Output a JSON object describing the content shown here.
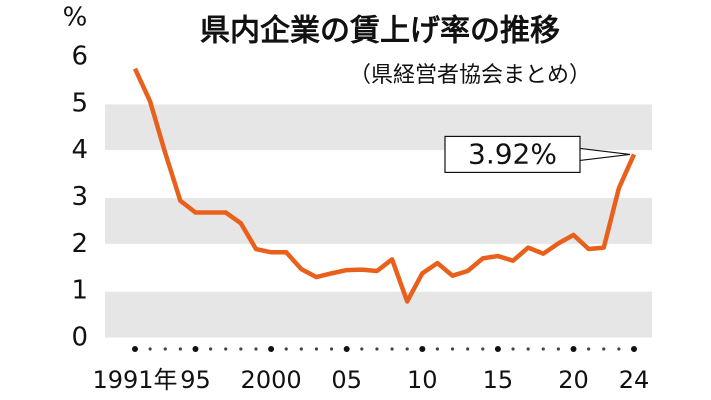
{
  "chart_data": {
    "type": "line",
    "title": "県内企業の賃上げ率の推移",
    "subtitle": "（県経営者協会まとめ）",
    "y_unit": "%",
    "x": [
      1991,
      1992,
      1993,
      1994,
      1995,
      1996,
      1997,
      1998,
      1999,
      2000,
      2001,
      2002,
      2003,
      2004,
      2005,
      2006,
      2007,
      2008,
      2009,
      2010,
      2011,
      2012,
      2013,
      2014,
      2015,
      2016,
      2017,
      2018,
      2019,
      2020,
      2021,
      2022,
      2023,
      2024
    ],
    "values": [
      5.75,
      5.05,
      3.95,
      2.93,
      2.68,
      2.68,
      2.68,
      2.45,
      1.9,
      1.83,
      1.83,
      1.47,
      1.3,
      1.38,
      1.45,
      1.46,
      1.43,
      1.68,
      0.78,
      1.38,
      1.6,
      1.33,
      1.43,
      1.7,
      1.75,
      1.65,
      1.93,
      1.8,
      2.02,
      2.2,
      1.9,
      1.93,
      3.2,
      3.92
    ],
    "value_labels": [
      null,
      null,
      null,
      null,
      null,
      null,
      null,
      null,
      null,
      null,
      null,
      null,
      null,
      null,
      null,
      null,
      null,
      null,
      null,
      null,
      null,
      null,
      null,
      null,
      null,
      null,
      null,
      null,
      null,
      null,
      null,
      null,
      null,
      "3.92%"
    ],
    "color": "#e8601c",
    "band_color": "#e6e6e6",
    "xlim": [
      1991,
      2024
    ],
    "xticks": [
      {
        "value": 1991,
        "label": "1991年"
      },
      {
        "value": 1995,
        "label": "95"
      },
      2000,
      {
        "value": 2005,
        "label": "05"
      },
      {
        "value": 2010,
        "label": "10"
      },
      {
        "value": 2015,
        "label": "15"
      },
      {
        "value": 2020,
        "label": "20"
      },
      {
        "value": 2024,
        "label": "24"
      }
    ],
    "ylim": [
      0,
      6
    ],
    "yticks": [
      0,
      1,
      2,
      3,
      4,
      5,
      6
    ]
  }
}
